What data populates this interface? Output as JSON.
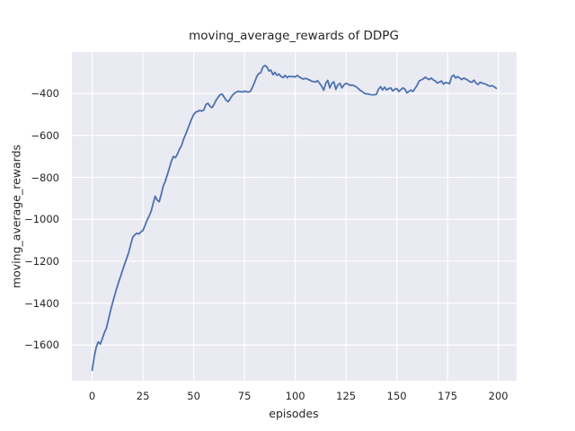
{
  "chart_data": {
    "type": "line",
    "title": "moving_average_rewards of DDPG",
    "xlabel": "episodes",
    "ylabel": "moving_average_rewards",
    "x_ticks": [
      0,
      25,
      50,
      75,
      100,
      125,
      150,
      175,
      200
    ],
    "y_ticks": [
      -400,
      -600,
      -800,
      -1000,
      -1200,
      -1400,
      -1600
    ],
    "xlim": [
      -10,
      209
    ],
    "ylim": [
      -1770,
      -202
    ],
    "grid": true,
    "legend_position": "none",
    "colors": {
      "axes_background": "#EAEAF2",
      "grid": "#FFFFFF",
      "line": "#4C72B0",
      "text": "#262626",
      "figure_background": "#FFFFFF"
    },
    "series": [
      {
        "x_start": 0,
        "x_step": 1,
        "values": [
          -1720,
          -1655,
          -1610,
          -1585,
          -1595,
          -1570,
          -1540,
          -1520,
          -1478,
          -1438,
          -1400,
          -1365,
          -1332,
          -1300,
          -1272,
          -1242,
          -1212,
          -1186,
          -1158,
          -1120,
          -1085,
          -1074,
          -1066,
          -1070,
          -1060,
          -1053,
          -1030,
          -1005,
          -985,
          -962,
          -925,
          -890,
          -908,
          -916,
          -880,
          -842,
          -818,
          -788,
          -755,
          -722,
          -700,
          -706,
          -688,
          -665,
          -648,
          -618,
          -595,
          -570,
          -545,
          -520,
          -500,
          -488,
          -485,
          -480,
          -484,
          -478,
          -452,
          -446,
          -460,
          -467,
          -452,
          -432,
          -418,
          -405,
          -403,
          -417,
          -432,
          -439,
          -424,
          -409,
          -399,
          -393,
          -389,
          -391,
          -393,
          -388,
          -391,
          -393,
          -389,
          -368,
          -346,
          -320,
          -305,
          -300,
          -274,
          -266,
          -272,
          -292,
          -288,
          -310,
          -299,
          -313,
          -307,
          -318,
          -324,
          -313,
          -324,
          -317,
          -320,
          -318,
          -321,
          -313,
          -321,
          -326,
          -331,
          -327,
          -331,
          -335,
          -341,
          -343,
          -345,
          -338,
          -352,
          -364,
          -384,
          -352,
          -337,
          -373,
          -351,
          -344,
          -380,
          -359,
          -351,
          -373,
          -359,
          -351,
          -355,
          -361,
          -359,
          -363,
          -368,
          -376,
          -385,
          -390,
          -399,
          -401,
          -402,
          -405,
          -406,
          -406,
          -403,
          -380,
          -367,
          -383,
          -369,
          -383,
          -376,
          -373,
          -387,
          -380,
          -376,
          -390,
          -381,
          -373,
          -379,
          -397,
          -390,
          -383,
          -390,
          -375,
          -361,
          -340,
          -335,
          -330,
          -322,
          -328,
          -333,
          -326,
          -335,
          -340,
          -350,
          -345,
          -340,
          -355,
          -347,
          -350,
          -353,
          -319,
          -312,
          -326,
          -319,
          -326,
          -333,
          -326,
          -331,
          -336,
          -344,
          -346,
          -336,
          -350,
          -357,
          -346,
          -350,
          -353,
          -356,
          -362,
          -365,
          -362,
          -368,
          -375
        ]
      }
    ]
  }
}
